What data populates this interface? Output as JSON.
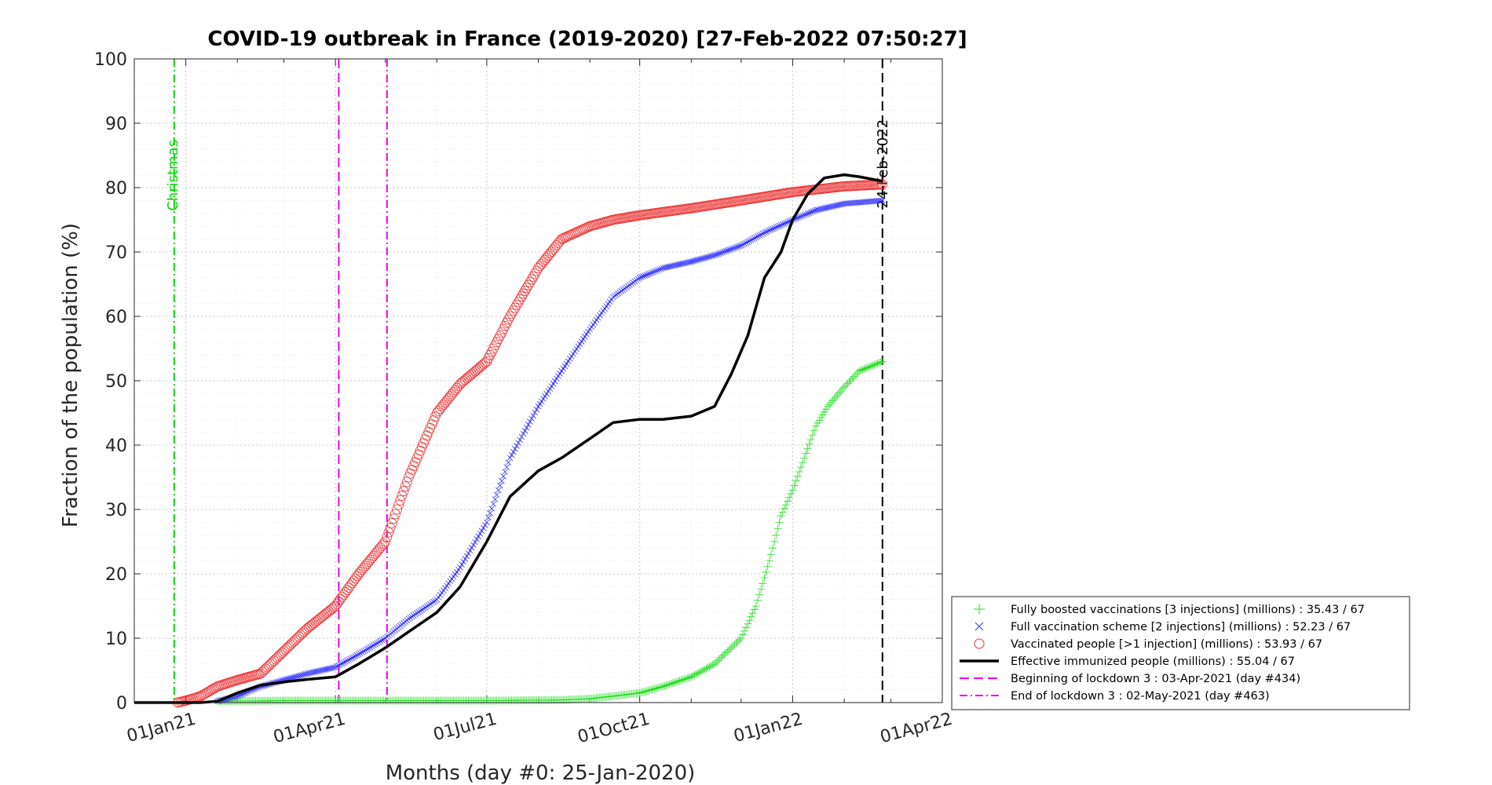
{
  "chart_data": {
    "type": "line",
    "title": "COVID-19 outbreak in France (2019-2020) [27-Feb-2022 07:50:27]",
    "xlabel": "Months (day #0: 25-Jan-2020)",
    "ylabel": "Fraction of the population (%)",
    "ylim": [
      0,
      100
    ],
    "xlim": [
      "2020-12-01",
      "2022-04-01"
    ],
    "grid": true,
    "legend_position": "bottom-right, outside plot",
    "y_ticks": [
      "0",
      "10",
      "20",
      "30",
      "40",
      "50",
      "60",
      "70",
      "80",
      "90",
      "100"
    ],
    "x_ticks": [
      {
        "date": "2021-01-01",
        "label": "01Jan21"
      },
      {
        "date": "2021-04-01",
        "label": "01Apr21"
      },
      {
        "date": "2021-07-01",
        "label": "01Jul21"
      },
      {
        "date": "2021-10-01",
        "label": "01Oct21"
      },
      {
        "date": "2022-01-01",
        "label": "01Jan22"
      },
      {
        "date": "2022-04-01",
        "label": "01Apr22"
      }
    ],
    "vertical_lines": [
      {
        "date": "2020-12-25",
        "label": "Christmas",
        "color": "#00dd00",
        "style": "dashdot"
      },
      {
        "date": "2021-04-03",
        "label": "",
        "color": "#ee00ee",
        "style": "dash"
      },
      {
        "date": "2021-05-02",
        "label": "",
        "color": "#ee00ee",
        "style": "dashdot"
      },
      {
        "date": "2022-02-24",
        "label": "24-Feb-2022",
        "color": "#000000",
        "style": "dash"
      }
    ],
    "series": [
      {
        "name": "Fully boosted vaccinations [3 injections] (millions) : 35.43 / 67",
        "color": "#22dd22",
        "marker": "plus",
        "points": [
          [
            "2021-01-20",
            0.2
          ],
          [
            "2021-03-01",
            0.3
          ],
          [
            "2021-05-01",
            0.3
          ],
          [
            "2021-07-01",
            0.3
          ],
          [
            "2021-08-15",
            0.4
          ],
          [
            "2021-09-01",
            0.6
          ],
          [
            "2021-09-15",
            1.0
          ],
          [
            "2021-10-01",
            1.5
          ],
          [
            "2021-10-15",
            2.5
          ],
          [
            "2021-11-01",
            4.0
          ],
          [
            "2021-11-15",
            6.0
          ],
          [
            "2021-12-01",
            10.0
          ],
          [
            "2021-12-10",
            15.0
          ],
          [
            "2021-12-18",
            22.0
          ],
          [
            "2021-12-25",
            29.0
          ],
          [
            "2022-01-01",
            33.0
          ],
          [
            "2022-01-08",
            38.0
          ],
          [
            "2022-01-15",
            43.0
          ],
          [
            "2022-01-22",
            46.0
          ],
          [
            "2022-02-01",
            49.0
          ],
          [
            "2022-02-10",
            51.5
          ],
          [
            "2022-02-24",
            53.0
          ]
        ]
      },
      {
        "name": "Full vaccination scheme [2 injections] (millions) : 52.23 / 67",
        "color": "#3333ff",
        "marker": "cross",
        "points": [
          [
            "2021-01-20",
            0.2
          ],
          [
            "2021-02-01",
            1.0
          ],
          [
            "2021-02-15",
            2.5
          ],
          [
            "2021-03-01",
            3.5
          ],
          [
            "2021-03-15",
            4.5
          ],
          [
            "2021-04-01",
            5.5
          ],
          [
            "2021-04-15",
            7.5
          ],
          [
            "2021-05-01",
            10.0
          ],
          [
            "2021-05-15",
            13.0
          ],
          [
            "2021-06-01",
            16.0
          ],
          [
            "2021-06-15",
            21.0
          ],
          [
            "2021-07-01",
            28.0
          ],
          [
            "2021-07-15",
            38.0
          ],
          [
            "2021-08-01",
            46.0
          ],
          [
            "2021-08-15",
            51.5
          ],
          [
            "2021-09-01",
            58.0
          ],
          [
            "2021-09-15",
            63.0
          ],
          [
            "2021-10-01",
            66.0
          ],
          [
            "2021-10-15",
            67.5
          ],
          [
            "2021-11-01",
            68.5
          ],
          [
            "2021-11-15",
            69.5
          ],
          [
            "2021-12-01",
            71.0
          ],
          [
            "2021-12-15",
            73.0
          ],
          [
            "2022-01-01",
            75.0
          ],
          [
            "2022-01-15",
            76.5
          ],
          [
            "2022-02-01",
            77.5
          ],
          [
            "2022-02-24",
            78.0
          ]
        ]
      },
      {
        "name": "Vaccinated people [>1 injection] (millions) : 53.93 / 67",
        "color": "#ee3333",
        "marker": "circle",
        "points": [
          [
            "2020-12-27",
            0.0
          ],
          [
            "2021-01-01",
            0.3
          ],
          [
            "2021-01-10",
            1.0
          ],
          [
            "2021-01-20",
            2.5
          ],
          [
            "2021-02-01",
            3.5
          ],
          [
            "2021-02-15",
            4.5
          ],
          [
            "2021-03-01",
            8.0
          ],
          [
            "2021-03-15",
            11.5
          ],
          [
            "2021-04-01",
            15.0
          ],
          [
            "2021-04-15",
            20.0
          ],
          [
            "2021-05-01",
            25.0
          ],
          [
            "2021-05-15",
            35.0
          ],
          [
            "2021-06-01",
            45.0
          ],
          [
            "2021-06-15",
            49.5
          ],
          [
            "2021-07-01",
            53.0
          ],
          [
            "2021-07-15",
            60.0
          ],
          [
            "2021-08-01",
            67.5
          ],
          [
            "2021-08-15",
            72.0
          ],
          [
            "2021-09-01",
            74.0
          ],
          [
            "2021-09-15",
            75.0
          ],
          [
            "2021-10-01",
            75.7
          ],
          [
            "2021-11-01",
            76.8
          ],
          [
            "2021-12-01",
            78.0
          ],
          [
            "2022-01-01",
            79.3
          ],
          [
            "2022-02-01",
            80.2
          ],
          [
            "2022-02-24",
            80.5
          ]
        ]
      },
      {
        "name": "Effective immunized people (millions) : 55.04 / 67",
        "color": "#000000",
        "marker": "line",
        "points": [
          [
            "2020-12-01",
            0.0
          ],
          [
            "2021-01-10",
            0.0
          ],
          [
            "2021-01-20",
            0.2
          ],
          [
            "2021-02-01",
            1.5
          ],
          [
            "2021-02-15",
            2.7
          ],
          [
            "2021-03-01",
            3.2
          ],
          [
            "2021-03-15",
            3.6
          ],
          [
            "2021-04-01",
            4.0
          ],
          [
            "2021-04-15",
            6.0
          ],
          [
            "2021-05-01",
            8.5
          ],
          [
            "2021-05-15",
            11.0
          ],
          [
            "2021-06-01",
            14.0
          ],
          [
            "2021-06-15",
            18.0
          ],
          [
            "2021-07-01",
            25.0
          ],
          [
            "2021-07-15",
            32.0
          ],
          [
            "2021-08-01",
            36.0
          ],
          [
            "2021-08-15",
            38.0
          ],
          [
            "2021-09-01",
            41.0
          ],
          [
            "2021-09-15",
            43.5
          ],
          [
            "2021-10-01",
            44.0
          ],
          [
            "2021-10-15",
            44.0
          ],
          [
            "2021-11-01",
            44.5
          ],
          [
            "2021-11-15",
            46.0
          ],
          [
            "2021-11-25",
            51.0
          ],
          [
            "2021-12-05",
            57.0
          ],
          [
            "2021-12-15",
            66.0
          ],
          [
            "2021-12-25",
            70.0
          ],
          [
            "2022-01-01",
            75.0
          ],
          [
            "2022-01-10",
            79.0
          ],
          [
            "2022-01-20",
            81.5
          ],
          [
            "2022-02-01",
            82.0
          ],
          [
            "2022-02-10",
            81.7
          ],
          [
            "2022-02-24",
            81.0
          ]
        ]
      },
      {
        "name": "Beginning of lockdown 3 : 03-Apr-2021 (day #434)",
        "color": "#ee00ee",
        "marker": "dash",
        "points": []
      },
      {
        "name": "End of lockdown 3 : 02-May-2021 (day #463)",
        "color": "#ee00ee",
        "marker": "dashdot",
        "points": []
      }
    ]
  }
}
